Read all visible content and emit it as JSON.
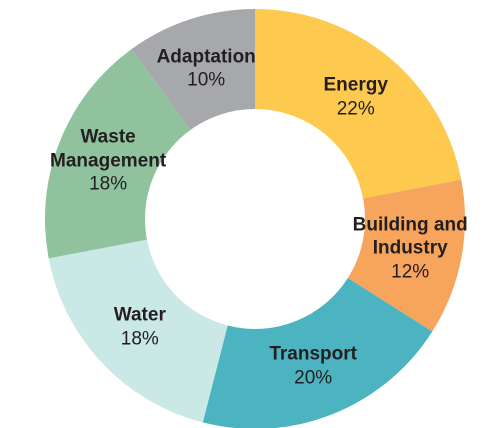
{
  "chart_data": {
    "type": "donut",
    "categories": [
      "Energy",
      "Building and Industry",
      "Transport",
      "Water",
      "Waste Management",
      "Adaptation"
    ],
    "values": [
      22,
      12,
      20,
      18,
      18,
      10
    ],
    "value_labels": [
      "22%",
      "12%",
      "20%",
      "18%",
      "18%",
      "10%"
    ],
    "colors": [
      "#fdc94f",
      "#f7a45d",
      "#4cb3c0",
      "#cae8e5",
      "#8fc29d",
      "#a7a8ab"
    ]
  }
}
